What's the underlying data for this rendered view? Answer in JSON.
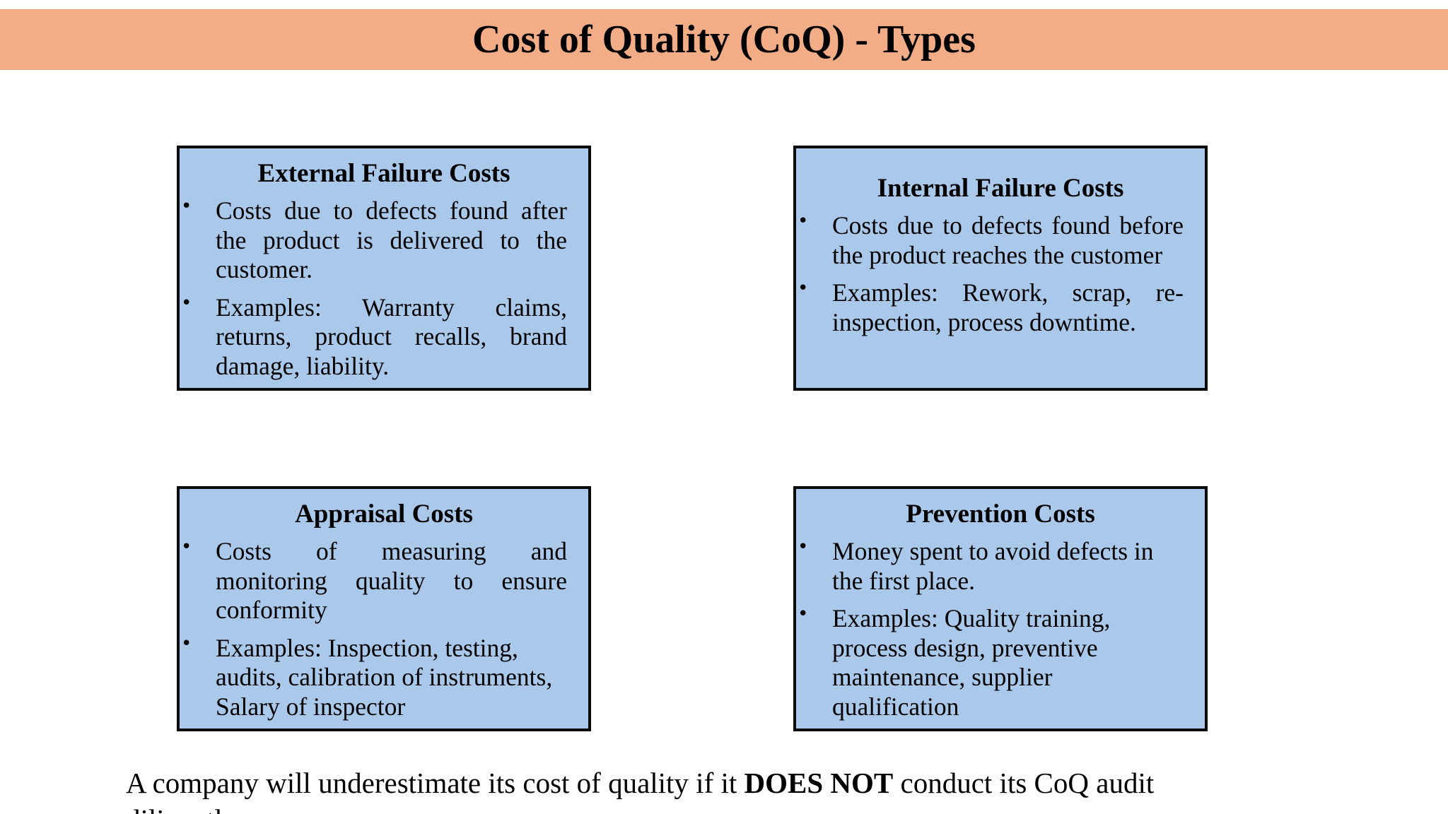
{
  "slide": {
    "title": "Cost of Quality (CoQ) - Types"
  },
  "boxes": [
    {
      "title": "External Failure Costs",
      "bullets": [
        "Costs due to defects found after the product is delivered to the customer.",
        "Examples: Warranty claims, returns, product recalls, brand damage, liability."
      ]
    },
    {
      "title": "Internal Failure Costs",
      "bullets": [
        "Costs due to defects found before the product reaches the customer",
        "Examples: Rework, scrap, re-inspection, process downtime."
      ]
    },
    {
      "title": "Appraisal Costs",
      "bullets": [
        "Costs of measuring and monitoring quality to ensure conformity",
        "Examples: Inspection, testing, audits, calibration of instruments, Salary of inspector"
      ]
    },
    {
      "title": "Prevention Costs",
      "bullets": [
        "Money spent to avoid defects in the first place.",
        "Examples: Quality training, process design, preventive maintenance, supplier qualification"
      ]
    }
  ],
  "footer": {
    "before": "A company will underestimate its cost of quality if it ",
    "emphasis": "DOES NOT",
    "after": " conduct its CoQ audit",
    "continuation": "diligently."
  }
}
